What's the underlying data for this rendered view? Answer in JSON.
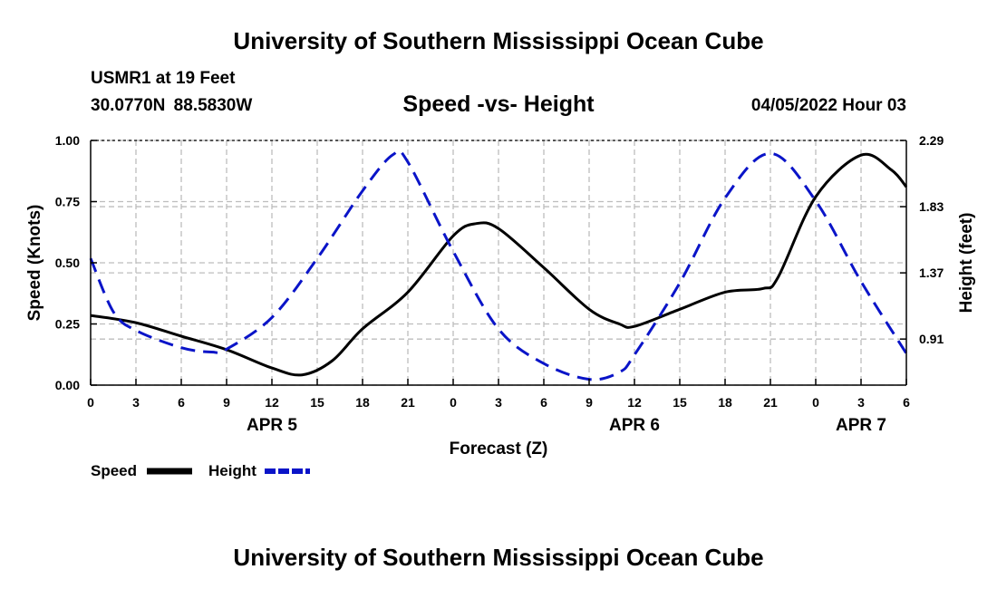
{
  "header": {
    "title": "University of Southern Mississippi Ocean Cube",
    "station": "USMR1 at 19 Feet",
    "coords": "30.0770N  88.5830W",
    "subtitle": "Speed -vs- Height",
    "datetime": "04/05/2022 Hour 03"
  },
  "footer": {
    "title": "University of Southern Mississippi Ocean Cube"
  },
  "chart_data": {
    "type": "line",
    "title": "Speed -vs- Height",
    "xlabel": "Forecast (Z)",
    "ylabel": "Speed (Knots)",
    "y2label": "Height (feet)",
    "xlim": [
      0,
      54
    ],
    "ylim": [
      0,
      1.0
    ],
    "y2lim": [
      0.59,
      2.29
    ],
    "grid": true,
    "x_ticks": [
      0,
      3,
      6,
      9,
      12,
      15,
      18,
      21,
      24,
      27,
      30,
      33,
      36,
      39,
      42,
      45,
      48,
      51,
      54
    ],
    "x_tick_labels": [
      "0",
      "3",
      "6",
      "9",
      "12",
      "15",
      "18",
      "21",
      "0",
      "3",
      "6",
      "9",
      "12",
      "15",
      "18",
      "21",
      "0",
      "3",
      "6"
    ],
    "y_ticks": [
      0,
      0.25,
      0.5,
      0.75,
      1.0
    ],
    "y_tick_labels": [
      "0.00",
      "0.25",
      "0.50",
      "0.75",
      "1.00"
    ],
    "y2_ticks": [
      0.91,
      1.37,
      1.83,
      2.29
    ],
    "y2_tick_labels": [
      "0.91",
      "1.37",
      "1.83",
      "2.29"
    ],
    "day_labels": [
      {
        "x": 12,
        "label": "APR 5"
      },
      {
        "x": 36,
        "label": "APR 6"
      },
      {
        "x": 51,
        "label": "APR 7"
      }
    ],
    "series": [
      {
        "name": "Speed",
        "axis": "left",
        "color": "#000000",
        "style": "solid",
        "x": [
          0,
          3,
          6,
          9,
          12,
          14,
          16,
          18,
          21,
          24,
          25.5,
          27,
          30,
          33,
          35,
          36,
          39,
          42,
          44.5,
          45.5,
          48,
          51,
          53,
          54
        ],
        "values": [
          0.285,
          0.255,
          0.2,
          0.145,
          0.07,
          0.042,
          0.1,
          0.23,
          0.38,
          0.61,
          0.66,
          0.64,
          0.48,
          0.31,
          0.25,
          0.24,
          0.31,
          0.38,
          0.395,
          0.44,
          0.77,
          0.94,
          0.88,
          0.81
        ]
      },
      {
        "name": "Height",
        "axis": "right",
        "color": "#0a14c8",
        "style": "dashed",
        "x": [
          0,
          1.5,
          3,
          6,
          8,
          9,
          12,
          15,
          18,
          20,
          21,
          24,
          27,
          30,
          33,
          35,
          36,
          39,
          42,
          45,
          48,
          51,
          54
        ],
        "values": [
          1.47,
          1.1,
          0.97,
          0.85,
          0.82,
          0.84,
          1.06,
          1.47,
          1.94,
          2.19,
          2.14,
          1.52,
          0.98,
          0.74,
          0.63,
          0.68,
          0.8,
          1.3,
          1.89,
          2.2,
          1.87,
          1.31,
          0.81
        ]
      }
    ],
    "legend": [
      {
        "label": "Speed",
        "color": "#000000",
        "style": "solid"
      },
      {
        "label": "Height",
        "color": "#0a14c8",
        "style": "dashed"
      }
    ],
    "legend_position": "bottom-left"
  }
}
